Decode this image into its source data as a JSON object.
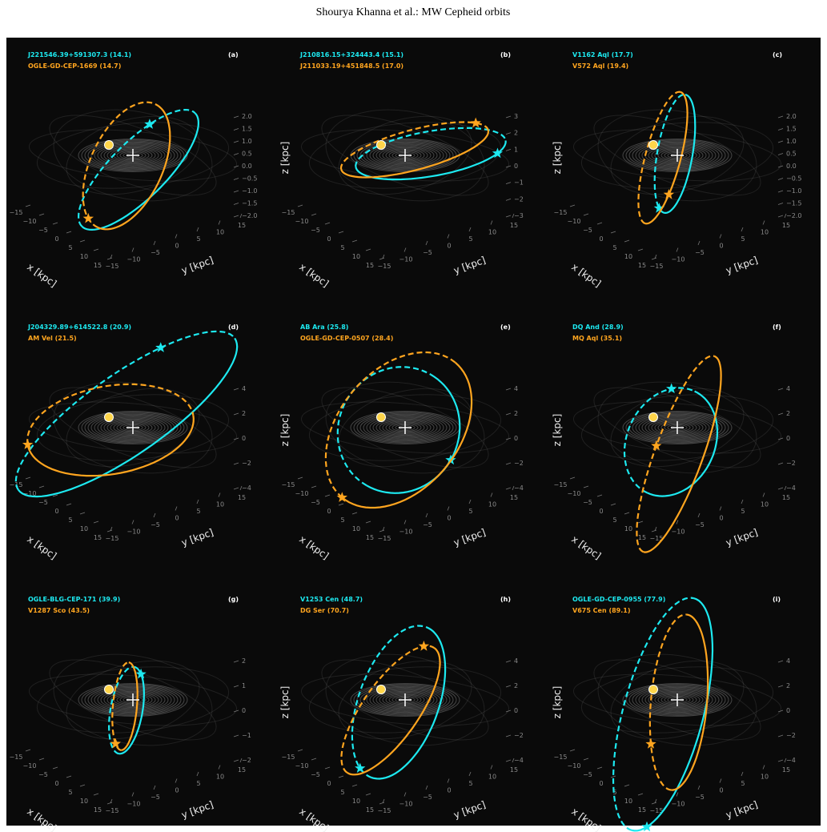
{
  "header": {
    "title": "Shourya Khanna et al.: MW Cepheid orbits"
  },
  "panels": [
    {
      "label": "(a)",
      "stars": [
        {
          "name": "J221546.39+591307.3 (14.1)",
          "color": "#1de9f0"
        },
        {
          "name": "OGLE-GD-CEP-1669 (14.7)",
          "color": "#ffa51f"
        }
      ],
      "z_ticks": [
        "2.0",
        "1.5",
        "1.0",
        "0.5",
        "0.0",
        "−0.5",
        "−1.0",
        "−1.5",
        "−2.0"
      ],
      "x_ticks": [
        "−15",
        "−10",
        "−5",
        "0",
        "5",
        "10",
        "15"
      ],
      "y_ticks": [
        "−15",
        "−10",
        "−5",
        "0",
        "5",
        "10",
        "15"
      ],
      "x_label": "x [kpc]",
      "y_label": "y [kpc]"
    },
    {
      "label": "(b)",
      "stars": [
        {
          "name": "J210816.15+324443.4 (15.1)",
          "color": "#1de9f0"
        },
        {
          "name": "J211033.19+451848.5 (17.0)",
          "color": "#ffa51f"
        }
      ],
      "z_ticks": [
        "3",
        "2",
        "1",
        "0",
        "−1",
        "−2",
        "−3"
      ],
      "x_ticks": [
        "−15",
        "−10",
        "−5",
        "0",
        "5",
        "10",
        "15"
      ],
      "y_ticks": [
        "−15",
        "−10",
        "−5",
        "0",
        "5",
        "10",
        "15"
      ],
      "x_label": "x [kpc]",
      "y_label": "y [kpc]",
      "z_label": "z [kpc]"
    },
    {
      "label": "(c)",
      "stars": [
        {
          "name": "V1162 Aql (17.7)",
          "color": "#1de9f0"
        },
        {
          "name": "V572 Aql (19.4)",
          "color": "#ffa51f"
        }
      ],
      "z_ticks": [
        "2.0",
        "1.5",
        "1.0",
        "0.5",
        "0.0",
        "−0.5",
        "−1.0",
        "−1.5",
        "−2.0"
      ],
      "x_ticks": [
        "−15",
        "−10",
        "−5",
        "0",
        "5",
        "10",
        "15"
      ],
      "y_ticks": [
        "−15",
        "−10",
        "−5",
        "0",
        "5",
        "10",
        "15"
      ],
      "x_label": "x [kpc]",
      "y_label": "y [kpc]",
      "z_label": "z [kpc]"
    },
    {
      "label": "(d)",
      "stars": [
        {
          "name": "J204329.89+614522.8 (20.9)",
          "color": "#1de9f0"
        },
        {
          "name": "AM Vel (21.5)",
          "color": "#ffa51f"
        }
      ],
      "z_ticks": [
        "4",
        "2",
        "0",
        "−2",
        "−4"
      ],
      "x_ticks": [
        "−15",
        "−10",
        "−5",
        "0",
        "5",
        "10",
        "15"
      ],
      "y_ticks": [
        "−15",
        "−10",
        "−5",
        "0",
        "5",
        "10",
        "15"
      ],
      "x_label": "x [kpc]",
      "y_label": "y [kpc]"
    },
    {
      "label": "(e)",
      "stars": [
        {
          "name": "AB Ara (25.8)",
          "color": "#1de9f0"
        },
        {
          "name": "OGLE-GD-CEP-0507 (28.4)",
          "color": "#ffa51f"
        }
      ],
      "z_ticks": [
        "4",
        "2",
        "0",
        "−2",
        "−4"
      ],
      "x_ticks": [
        "−15",
        "−10",
        "−5",
        "0",
        "5",
        "10",
        "15"
      ],
      "y_ticks": [
        "−15",
        "−10",
        "−5",
        "0",
        "5",
        "10",
        "15"
      ],
      "x_label": "x [kpc]",
      "y_label": "y [kpc]",
      "z_label": "z [kpc]"
    },
    {
      "label": "(f)",
      "stars": [
        {
          "name": "DQ And (28.9)",
          "color": "#1de9f0"
        },
        {
          "name": "MQ Aql (35.1)",
          "color": "#ffa51f"
        }
      ],
      "z_ticks": [
        "4",
        "2",
        "0",
        "−2",
        "−4"
      ],
      "x_ticks": [
        "−15",
        "−10",
        "−5",
        "0",
        "5",
        "10",
        "15"
      ],
      "y_ticks": [
        "−15",
        "−10",
        "−5",
        "0",
        "5",
        "10",
        "15"
      ],
      "x_label": "x [kpc]",
      "y_label": "y [kpc]",
      "z_label": "z [kpc]"
    },
    {
      "label": "(g)",
      "stars": [
        {
          "name": "OGLE-BLG-CEP-171 (39.9)",
          "color": "#1de9f0"
        },
        {
          "name": "V1287 Sco (43.5)",
          "color": "#ffa51f"
        }
      ],
      "z_ticks": [
        "2",
        "1",
        "0",
        "−1",
        "−2"
      ],
      "x_ticks": [
        "−15",
        "−10",
        "−5",
        "0",
        "5",
        "10",
        "15"
      ],
      "y_ticks": [
        "−15",
        "−10",
        "−5",
        "0",
        "5",
        "10",
        "15"
      ],
      "x_label": "x [kpc]",
      "y_label": "y [kpc]"
    },
    {
      "label": "(h)",
      "stars": [
        {
          "name": "V1253 Cen (48.7)",
          "color": "#1de9f0"
        },
        {
          "name": "DG Ser (70.7)",
          "color": "#ffa51f"
        }
      ],
      "z_ticks": [
        "4",
        "2",
        "0",
        "−2",
        "−4"
      ],
      "x_ticks": [
        "−15",
        "−10",
        "−5",
        "0",
        "5",
        "10",
        "15"
      ],
      "y_ticks": [
        "−15",
        "−10",
        "−5",
        "0",
        "5",
        "10",
        "15"
      ],
      "x_label": "x [kpc]",
      "y_label": "y [kpc]",
      "z_label": "z [kpc]"
    },
    {
      "label": "(i)",
      "stars": [
        {
          "name": "OGLE-GD-CEP-0955 (77.9)",
          "color": "#1de9f0"
        },
        {
          "name": "V675 Cen (89.1)",
          "color": "#ffa51f"
        }
      ],
      "z_ticks": [
        "4",
        "2",
        "0",
        "−2",
        "−4"
      ],
      "x_ticks": [
        "−15",
        "−10",
        "−5",
        "0",
        "5",
        "10",
        "15"
      ],
      "y_ticks": [
        "−15",
        "−10",
        "−5",
        "0",
        "5",
        "10",
        "15"
      ],
      "x_label": "x [kpc]",
      "y_label": "y [kpc]",
      "z_label": "z [kpc]"
    }
  ]
}
